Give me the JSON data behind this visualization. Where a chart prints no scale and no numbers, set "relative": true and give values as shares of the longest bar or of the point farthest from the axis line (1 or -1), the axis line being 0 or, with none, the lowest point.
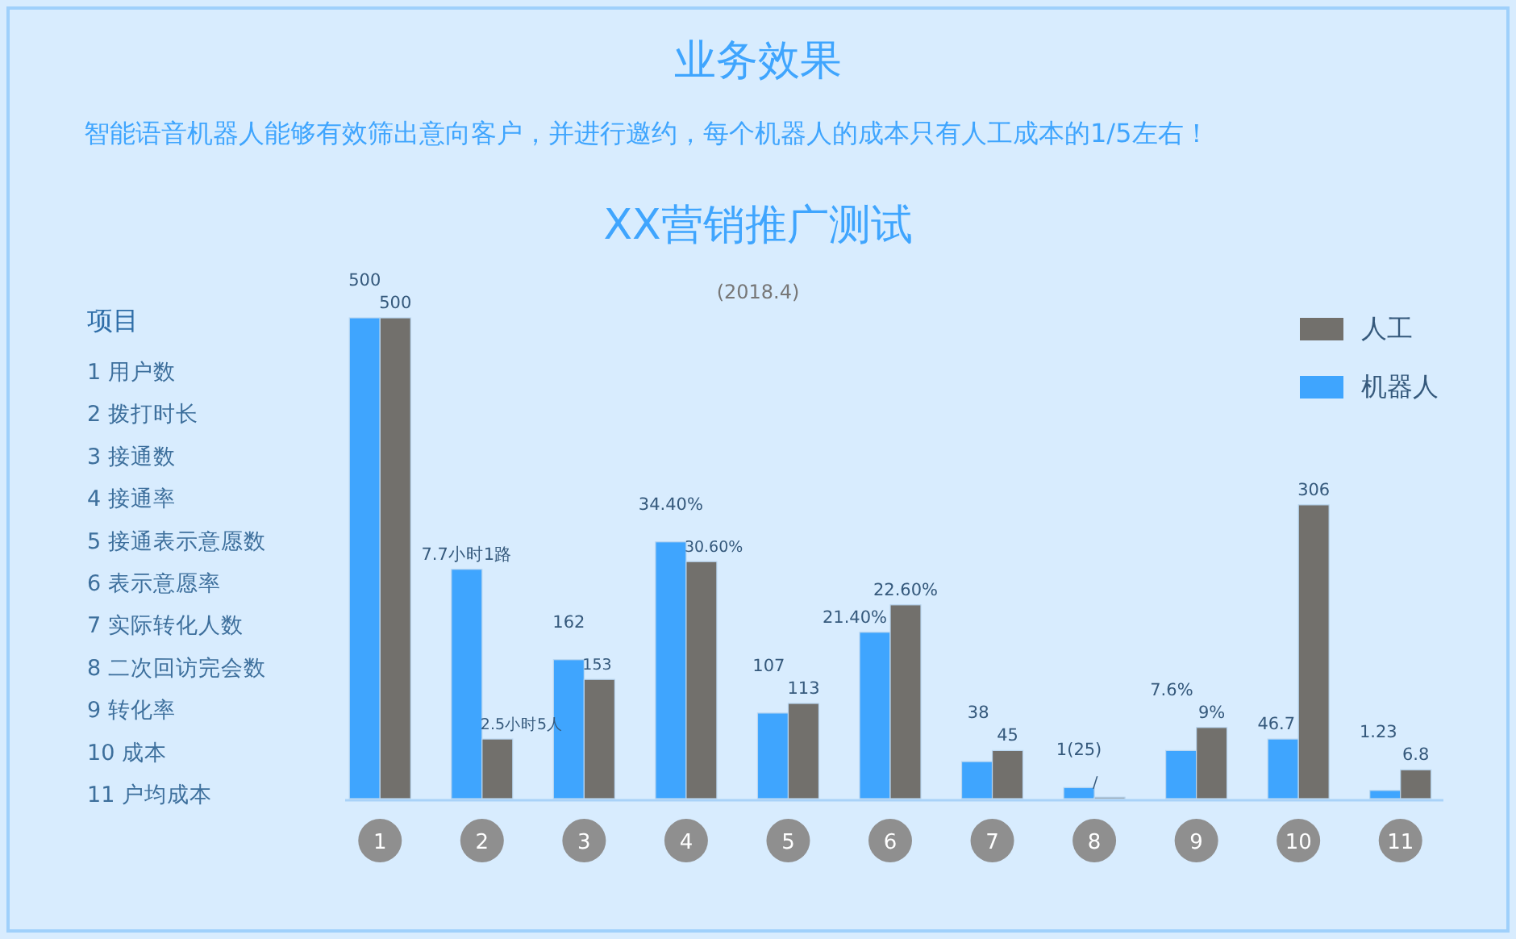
{
  "chart_data": {
    "type": "bar",
    "title": "XX营销推广测试",
    "subtitle": "(2018.4)",
    "relative": true,
    "legend": "top right",
    "categories": [
      "1",
      "2",
      "3",
      "4",
      "5",
      "6",
      "7",
      "8",
      "9",
      "10",
      "11"
    ],
    "series": [
      {
        "name": "机器人",
        "color": "#3fa5fe",
        "values": [
          1,
          0.477,
          0.289,
          0.534,
          0.178,
          0.346,
          0.077,
          0.023,
          0.1,
          0.124,
          0.017
        ]
      },
      {
        "name": "人工",
        "color": "#72706c",
        "values": [
          1,
          0.124,
          0.248,
          0.493,
          0.198,
          0.403,
          0.1,
          0.003,
          0.148,
          0.611,
          0.06
        ]
      }
    ],
    "annotations": [
      "业务效果",
      "智能语音机器人能够有效筛出意向客户，并进行邀约，每个机器人的成本只有人工成本的1/5左右！",
      "项目",
      "1 用户数",
      "2 拨打时长",
      "3 接通数",
      "4 接通率",
      "5 接通表示意愿数",
      "6 表示意愿率",
      "7 实际转化人数",
      "8 二次回访完会数",
      "9 转化率",
      "10 成本",
      "11 户均成本",
      {
        "text": "500",
        "x": "1",
        "y": 1
      },
      {
        "text": "500",
        "x": "1",
        "y": 1
      },
      {
        "text": "7.7小时1路",
        "x": "2",
        "y": 0.477
      },
      {
        "text": "2.5小时5人",
        "x": "2",
        "y": 0.124
      },
      {
        "text": "162",
        "x": "3",
        "y": 0.289
      },
      {
        "text": "153",
        "x": "3",
        "y": 0.248
      },
      {
        "text": "34.40%",
        "x": "4",
        "y": 0.534
      },
      {
        "text": "30.60%",
        "x": "4",
        "y": 0.493
      },
      {
        "text": "107",
        "x": "5",
        "y": 0.178
      },
      {
        "text": "113",
        "x": "5",
        "y": 0.198
      },
      {
        "text": "21.40%",
        "x": "6",
        "y": 0.346
      },
      {
        "text": "22.60%",
        "x": "6",
        "y": 0.403
      },
      {
        "text": "38",
        "x": "7",
        "y": 0.077
      },
      {
        "text": "45",
        "x": "7",
        "y": 0.1
      },
      {
        "text": "1(25)",
        "x": "8",
        "y": 0.023
      },
      {
        "text": "/",
        "x": "8",
        "y": 0.003
      },
      {
        "text": "7.6%",
        "x": "9",
        "y": 0.1
      },
      {
        "text": "9%",
        "x": "9",
        "y": 0.148
      },
      {
        "text": "46.7",
        "x": "10",
        "y": 0.124
      },
      {
        "text": "306",
        "x": "10",
        "y": 0.611
      },
      {
        "text": "1.23",
        "x": "11",
        "y": 0.017
      },
      {
        "text": "6.8",
        "x": "11",
        "y": 0.06
      }
    ]
  }
}
